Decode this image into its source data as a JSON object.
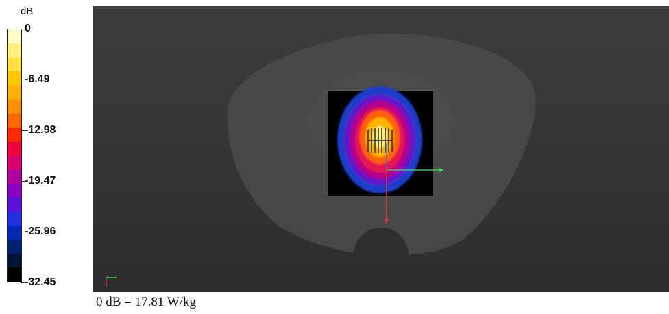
{
  "legend": {
    "unit": "dB",
    "ticks": [
      "0",
      "-6.49",
      "-12.98",
      "-19.47",
      "-25.96",
      "-32.45"
    ],
    "colors": [
      "#ffffc8",
      "#fff080",
      "#ffe040",
      "#ffc800",
      "#ffb000",
      "#ff9000",
      "#ff6a00",
      "#ff2a00",
      "#f0003c",
      "#d8006e",
      "#b0009e",
      "#8a00c0",
      "#5a10d8",
      "#2030e0",
      "#0028b4",
      "#002070",
      "#001438",
      "#000000"
    ]
  },
  "scene": {
    "background_colors": [
      "#3d3d3d",
      "#2d2d2d"
    ],
    "phantom_color": "#4a4a4a",
    "heatmap_colors": [
      "#000000",
      "#1c3cc8",
      "#6414c8",
      "#b4008c",
      "#e61450",
      "#ff6400",
      "#ffb400",
      "#ffeb78"
    ]
  },
  "caption": "0 dB = 17.81 W/kg"
}
